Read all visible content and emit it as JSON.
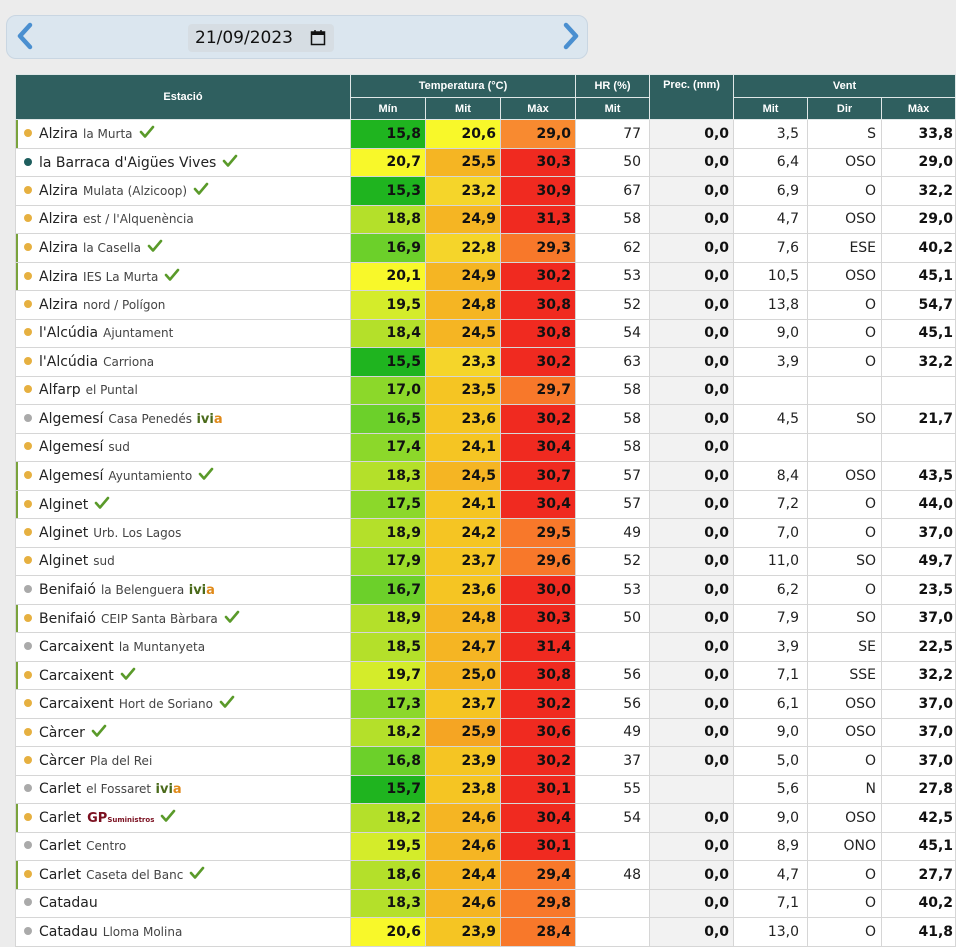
{
  "date_nav": {
    "date_value": "21/09/2023",
    "prev_icon": "chevron-left-icon",
    "next_icon": "chevron-right-icon",
    "calendar_icon": "calendar-icon"
  },
  "header": {
    "station": "Estació",
    "temperature": "Temperatura (°C)",
    "hr": "HR (%)",
    "prec": "Prec. (mm)",
    "wind": "Vent",
    "t_min": "Mín",
    "t_mit": "Mit",
    "t_max": "Màx",
    "hr_mit": "Mit",
    "w_mit": "Mit",
    "w_dir": "Dir",
    "w_max": "Màx"
  },
  "colors": {
    "dot_amber": "#e6b040",
    "dot_teal": "#1e5e5e",
    "dot_gray": "#aaaaaa",
    "check": "#5a9a2a",
    "accent": "#2f5f5f"
  },
  "rows": [
    {
      "name": "Alzira",
      "sub": "la Murta",
      "dot": "amber",
      "check": true,
      "ivia": false,
      "gp": false,
      "bar": true,
      "tmin": "15,8",
      "tmit": "20,6",
      "tmax": "29,0",
      "cmin": "#1fb41f",
      "cmit": "#f8f82a",
      "cmax": "#f88a30",
      "hr": "77",
      "prec": "0,0",
      "wmit": "3,5",
      "wdir": "S",
      "wmax": "33,8"
    },
    {
      "name": "la Barraca d'Aigües Vives",
      "sub": "",
      "dot": "teal",
      "check": true,
      "ivia": false,
      "gp": false,
      "bar": false,
      "tmin": "20,7",
      "tmit": "25,5",
      "tmax": "30,3",
      "cmin": "#f8f82a",
      "cmit": "#f5b523",
      "cmax": "#f02a20",
      "hr": "50",
      "prec": "0,0",
      "wmit": "6,4",
      "wdir": "OSO",
      "wmax": "29,0"
    },
    {
      "name": "Alzira",
      "sub": "Mulata (Alzicoop)",
      "dot": "amber",
      "check": true,
      "ivia": false,
      "gp": false,
      "bar": false,
      "tmin": "15,3",
      "tmit": "23,2",
      "tmax": "30,9",
      "cmin": "#1fb41f",
      "cmit": "#f5d52a",
      "cmax": "#f02a20",
      "hr": "67",
      "prec": "0,0",
      "wmit": "6,9",
      "wdir": "O",
      "wmax": "32,2"
    },
    {
      "name": "Alzira",
      "sub": "est / l'Alquenència",
      "dot": "amber",
      "check": false,
      "ivia": false,
      "gp": false,
      "bar": false,
      "tmin": "18,8",
      "tmit": "24,9",
      "tmax": "31,3",
      "cmin": "#b4e02a",
      "cmit": "#f5b523",
      "cmax": "#f02a20",
      "hr": "58",
      "prec": "0,0",
      "wmit": "4,7",
      "wdir": "OSO",
      "wmax": "29,0"
    },
    {
      "name": "Alzira",
      "sub": "la Casella",
      "dot": "amber",
      "check": true,
      "ivia": false,
      "gp": false,
      "bar": true,
      "tmin": "16,9",
      "tmit": "22,8",
      "tmax": "29,3",
      "cmin": "#6cd02a",
      "cmit": "#f5d52a",
      "cmax": "#f8782a",
      "hr": "62",
      "prec": "0,0",
      "wmit": "7,6",
      "wdir": "ESE",
      "wmax": "40,2"
    },
    {
      "name": "Alzira",
      "sub": "IES La Murta",
      "dot": "amber",
      "check": true,
      "ivia": false,
      "gp": false,
      "bar": true,
      "tmin": "20,1",
      "tmit": "24,9",
      "tmax": "30,2",
      "cmin": "#f8f82a",
      "cmit": "#f5b523",
      "cmax": "#f02a20",
      "hr": "53",
      "prec": "0,0",
      "wmit": "10,5",
      "wdir": "OSO",
      "wmax": "45,1"
    },
    {
      "name": "Alzira",
      "sub": "nord / Polígon",
      "dot": "amber",
      "check": false,
      "ivia": false,
      "gp": false,
      "bar": false,
      "tmin": "19,5",
      "tmit": "24,8",
      "tmax": "30,8",
      "cmin": "#d4ec2a",
      "cmit": "#f5b523",
      "cmax": "#f02a20",
      "hr": "52",
      "prec": "0,0",
      "wmit": "13,8",
      "wdir": "O",
      "wmax": "54,7"
    },
    {
      "name": "l'Alcúdia",
      "sub": "Ajuntament",
      "dot": "amber",
      "check": false,
      "ivia": false,
      "gp": false,
      "bar": false,
      "tmin": "18,4",
      "tmit": "24,5",
      "tmax": "30,8",
      "cmin": "#b4e02a",
      "cmit": "#f5b523",
      "cmax": "#f02a20",
      "hr": "54",
      "prec": "0,0",
      "wmit": "9,0",
      "wdir": "O",
      "wmax": "45,1"
    },
    {
      "name": "l'Alcúdia",
      "sub": "Carriona",
      "dot": "amber",
      "check": false,
      "ivia": false,
      "gp": false,
      "bar": false,
      "tmin": "15,5",
      "tmit": "23,3",
      "tmax": "30,2",
      "cmin": "#1fb41f",
      "cmit": "#f5d52a",
      "cmax": "#f02a20",
      "hr": "63",
      "prec": "0,0",
      "wmit": "3,9",
      "wdir": "O",
      "wmax": "32,2"
    },
    {
      "name": "Alfarp",
      "sub": "el Puntal",
      "dot": "amber",
      "check": false,
      "ivia": false,
      "gp": false,
      "bar": false,
      "tmin": "17,0",
      "tmit": "23,5",
      "tmax": "29,7",
      "cmin": "#8cd82a",
      "cmit": "#f5c523",
      "cmax": "#f8782a",
      "hr": "58",
      "prec": "0,0",
      "wmit": "",
      "wdir": "",
      "wmax": ""
    },
    {
      "name": "Algemesí",
      "sub": "Casa Penedés",
      "dot": "gray",
      "check": false,
      "ivia": true,
      "gp": false,
      "bar": false,
      "tmin": "16,5",
      "tmit": "23,6",
      "tmax": "30,2",
      "cmin": "#6cd02a",
      "cmit": "#f5c523",
      "cmax": "#f02a20",
      "hr": "58",
      "prec": "0,0",
      "wmit": "4,5",
      "wdir": "SO",
      "wmax": "21,7"
    },
    {
      "name": "Algemesí",
      "sub": "sud",
      "dot": "amber",
      "check": false,
      "ivia": false,
      "gp": false,
      "bar": false,
      "tmin": "17,4",
      "tmit": "24,1",
      "tmax": "30,4",
      "cmin": "#8cd82a",
      "cmit": "#f5c523",
      "cmax": "#f02a20",
      "hr": "58",
      "prec": "0,0",
      "wmit": "",
      "wdir": "",
      "wmax": ""
    },
    {
      "name": "Algemesí",
      "sub": "Ayuntamiento",
      "dot": "amber",
      "check": true,
      "ivia": false,
      "gp": false,
      "bar": true,
      "tmin": "18,3",
      "tmit": "24,5",
      "tmax": "30,7",
      "cmin": "#b4e02a",
      "cmit": "#f5b523",
      "cmax": "#f02a20",
      "hr": "57",
      "prec": "0,0",
      "wmit": "8,4",
      "wdir": "OSO",
      "wmax": "43,5"
    },
    {
      "name": "Alginet",
      "sub": "",
      "dot": "amber",
      "check": true,
      "ivia": false,
      "gp": false,
      "bar": true,
      "tmin": "17,5",
      "tmit": "24,1",
      "tmax": "30,4",
      "cmin": "#8cd82a",
      "cmit": "#f5c523",
      "cmax": "#f02a20",
      "hr": "57",
      "prec": "0,0",
      "wmit": "7,2",
      "wdir": "O",
      "wmax": "44,0"
    },
    {
      "name": "Alginet",
      "sub": "Urb. Los Lagos",
      "dot": "amber",
      "check": false,
      "ivia": false,
      "gp": false,
      "bar": false,
      "tmin": "18,9",
      "tmit": "24,2",
      "tmax": "29,5",
      "cmin": "#b4e02a",
      "cmit": "#f5c523",
      "cmax": "#f8782a",
      "hr": "49",
      "prec": "0,0",
      "wmit": "7,0",
      "wdir": "O",
      "wmax": "37,0"
    },
    {
      "name": "Alginet",
      "sub": "sud",
      "dot": "amber",
      "check": false,
      "ivia": false,
      "gp": false,
      "bar": false,
      "tmin": "17,9",
      "tmit": "23,7",
      "tmax": "29,6",
      "cmin": "#9cdc2a",
      "cmit": "#f5c523",
      "cmax": "#f8782a",
      "hr": "52",
      "prec": "0,0",
      "wmit": "11,0",
      "wdir": "SO",
      "wmax": "49,7"
    },
    {
      "name": "Benifaió",
      "sub": "la Belenguera",
      "dot": "gray",
      "check": false,
      "ivia": true,
      "gp": false,
      "bar": false,
      "tmin": "16,7",
      "tmit": "23,6",
      "tmax": "30,0",
      "cmin": "#6cd02a",
      "cmit": "#f5c523",
      "cmax": "#f02a20",
      "hr": "53",
      "prec": "0,0",
      "wmit": "6,2",
      "wdir": "O",
      "wmax": "23,5"
    },
    {
      "name": "Benifaió",
      "sub": "CEIP Santa Bàrbara",
      "dot": "amber",
      "check": true,
      "ivia": false,
      "gp": false,
      "bar": true,
      "tmin": "18,9",
      "tmit": "24,8",
      "tmax": "30,3",
      "cmin": "#b4e02a",
      "cmit": "#f5b523",
      "cmax": "#f02a20",
      "hr": "50",
      "prec": "0,0",
      "wmit": "7,9",
      "wdir": "SO",
      "wmax": "37,0"
    },
    {
      "name": "Carcaixent",
      "sub": "la Muntanyeta",
      "dot": "gray",
      "check": false,
      "ivia": false,
      "gp": false,
      "bar": false,
      "tmin": "18,5",
      "tmit": "24,7",
      "tmax": "31,4",
      "cmin": "#b4e02a",
      "cmit": "#f5b523",
      "cmax": "#f02a20",
      "hr": "",
      "prec": "0,0",
      "wmit": "3,9",
      "wdir": "SE",
      "wmax": "22,5"
    },
    {
      "name": "Carcaixent",
      "sub": "",
      "dot": "amber",
      "check": true,
      "ivia": false,
      "gp": false,
      "bar": true,
      "tmin": "19,7",
      "tmit": "25,0",
      "tmax": "30,8",
      "cmin": "#d4ec2a",
      "cmit": "#f5b523",
      "cmax": "#f02a20",
      "hr": "56",
      "prec": "0,0",
      "wmit": "7,1",
      "wdir": "SSE",
      "wmax": "32,2"
    },
    {
      "name": "Carcaixent",
      "sub": "Hort de Soriano",
      "dot": "amber",
      "check": true,
      "ivia": false,
      "gp": false,
      "bar": false,
      "tmin": "17,3",
      "tmit": "23,7",
      "tmax": "30,2",
      "cmin": "#8cd82a",
      "cmit": "#f5c523",
      "cmax": "#f02a20",
      "hr": "56",
      "prec": "0,0",
      "wmit": "6,1",
      "wdir": "OSO",
      "wmax": "37,0"
    },
    {
      "name": "Càrcer",
      "sub": "",
      "dot": "amber",
      "check": true,
      "ivia": false,
      "gp": false,
      "bar": false,
      "tmin": "18,2",
      "tmit": "25,9",
      "tmax": "30,6",
      "cmin": "#b4e02a",
      "cmit": "#f5a523",
      "cmax": "#f02a20",
      "hr": "49",
      "prec": "0,0",
      "wmit": "9,0",
      "wdir": "OSO",
      "wmax": "37,0"
    },
    {
      "name": "Càrcer",
      "sub": "Pla del Rei",
      "dot": "amber",
      "check": false,
      "ivia": false,
      "gp": false,
      "bar": false,
      "tmin": "16,8",
      "tmit": "23,9",
      "tmax": "30,2",
      "cmin": "#6cd02a",
      "cmit": "#f5c523",
      "cmax": "#f02a20",
      "hr": "37",
      "prec": "0,0",
      "wmit": "5,0",
      "wdir": "O",
      "wmax": "37,0"
    },
    {
      "name": "Carlet",
      "sub": "el Fossaret",
      "dot": "gray",
      "check": false,
      "ivia": true,
      "gp": false,
      "bar": false,
      "tmin": "15,7",
      "tmit": "23,8",
      "tmax": "30,1",
      "cmin": "#1fb41f",
      "cmit": "#f5c523",
      "cmax": "#f02a20",
      "hr": "55",
      "prec": "",
      "wmit": "5,6",
      "wdir": "N",
      "wmax": "27,8"
    },
    {
      "name": "Carlet",
      "sub": "",
      "dot": "amber",
      "check": true,
      "ivia": false,
      "gp": true,
      "bar": true,
      "tmin": "18,2",
      "tmit": "24,6",
      "tmax": "30,4",
      "cmin": "#b4e02a",
      "cmit": "#f5b523",
      "cmax": "#f02a20",
      "hr": "54",
      "prec": "0,0",
      "wmit": "9,0",
      "wdir": "OSO",
      "wmax": "42,5"
    },
    {
      "name": "Carlet",
      "sub": "Centro",
      "dot": "gray",
      "check": false,
      "ivia": false,
      "gp": false,
      "bar": false,
      "tmin": "19,5",
      "tmit": "24,6",
      "tmax": "30,1",
      "cmin": "#d4ec2a",
      "cmit": "#f5b523",
      "cmax": "#f02a20",
      "hr": "",
      "prec": "0,0",
      "wmit": "8,9",
      "wdir": "ONO",
      "wmax": "45,1"
    },
    {
      "name": "Carlet",
      "sub": "Caseta del Banc",
      "dot": "amber",
      "check": true,
      "ivia": false,
      "gp": false,
      "bar": true,
      "tmin": "18,6",
      "tmit": "24,4",
      "tmax": "29,4",
      "cmin": "#b4e02a",
      "cmit": "#f5b523",
      "cmax": "#f8782a",
      "hr": "48",
      "prec": "0,0",
      "wmit": "4,7",
      "wdir": "O",
      "wmax": "27,7"
    },
    {
      "name": "Catadau",
      "sub": "",
      "dot": "gray",
      "check": false,
      "ivia": false,
      "gp": false,
      "bar": false,
      "tmin": "18,3",
      "tmit": "24,6",
      "tmax": "29,8",
      "cmin": "#b4e02a",
      "cmit": "#f5b523",
      "cmax": "#f8782a",
      "hr": "",
      "prec": "0,0",
      "wmit": "7,1",
      "wdir": "O",
      "wmax": "40,2"
    },
    {
      "name": "Catadau",
      "sub": "Lloma Molina",
      "dot": "gray",
      "check": false,
      "ivia": false,
      "gp": false,
      "bar": false,
      "tmin": "20,6",
      "tmit": "23,9",
      "tmax": "28,4",
      "cmin": "#f8f82a",
      "cmit": "#f5c523",
      "cmax": "#f8782a",
      "hr": "",
      "prec": "0,0",
      "wmit": "13,0",
      "wdir": "O",
      "wmax": "41,8"
    }
  ],
  "labels": {
    "ivia_iv": "ivi",
    "ivia_a": "a",
    "gp_main": "GP",
    "gp_sub": "Suministros"
  }
}
